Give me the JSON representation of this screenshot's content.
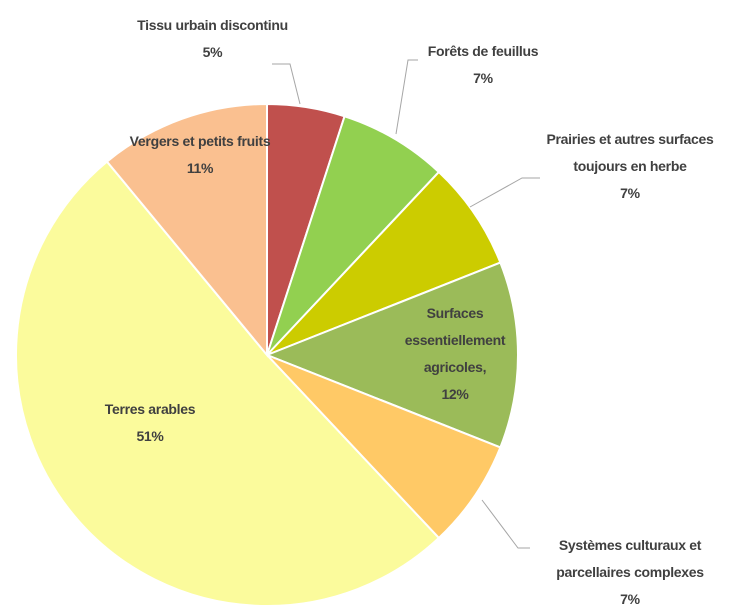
{
  "chart_data": {
    "type": "pie",
    "categories": [
      "Tissu urbain discontinu",
      "Forêts de feuillus",
      "Prairies et autres surfaces toujours en herbe",
      "Surfaces essentiellement agricoles,",
      "Systèmes culturaux et parcellaires complexes",
      "Terres arables",
      "Vergers et petits fruits"
    ],
    "values": [
      5,
      7,
      7,
      12,
      7,
      51,
      11
    ],
    "value_labels": [
      "5%",
      "7%",
      "7%",
      "12%",
      "7%",
      "51%",
      "11%"
    ],
    "colors": [
      "#c0504d",
      "#92d050",
      "#cccc00",
      "#9bbb59",
      "#ffc966",
      "#fbfb9c",
      "#fac090"
    ]
  }
}
